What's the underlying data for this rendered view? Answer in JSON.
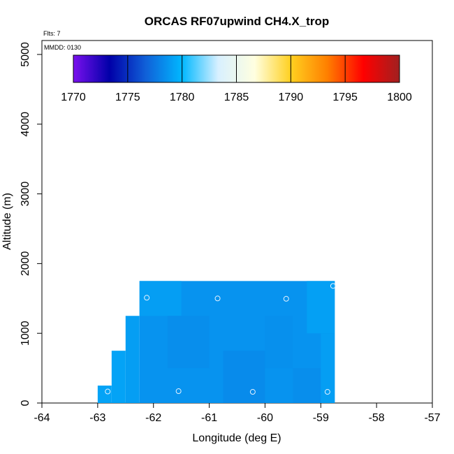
{
  "chart_data": {
    "type": "heatmap",
    "title": "ORCAS RF07upwind CH4.X_trop",
    "xlabel": "Longitude (deg E)",
    "ylabel": "Altitude (m)",
    "xlim": [
      -64,
      -57
    ],
    "ylim": [
      0,
      5200
    ],
    "x_ticks": [
      -64,
      -63,
      -62,
      -61,
      -60,
      -59,
      -58,
      -57
    ],
    "y_ticks": [
      0,
      1000,
      2000,
      3000,
      4000,
      5000
    ],
    "annotations": {
      "flights": "Flts: 7",
      "date": "MMDD: 0130"
    },
    "colorbar": {
      "min": 1770,
      "max": 1800,
      "ticks": [
        1770,
        1775,
        1780,
        1785,
        1790,
        1795,
        1800
      ],
      "colors": [
        "#7a10ee",
        "#0000a8",
        "#1060d8",
        "#00b8ff",
        "#d8f0ff",
        "#ffffe0",
        "#ffd020",
        "#ff8000",
        "#ff0000",
        "#a02020"
      ]
    },
    "cells": [
      {
        "x0": -63.0,
        "x1": -62.75,
        "y0": 0,
        "y1": 250,
        "value": 1779.2
      },
      {
        "x0": -62.75,
        "x1": -62.5,
        "y0": 0,
        "y1": 750,
        "value": 1779.2
      },
      {
        "x0": -62.5,
        "x1": -62.25,
        "y0": 0,
        "y1": 1250,
        "value": 1779.0
      },
      {
        "x0": -62.25,
        "x1": -58.75,
        "y0": 0,
        "y1": 1750,
        "value": 1778.6
      },
      {
        "x0": -62.25,
        "x1": -61.5,
        "y0": 1250,
        "y1": 1750,
        "value": 1779.0
      },
      {
        "x0": -61.75,
        "x1": -61.0,
        "y0": 500,
        "y1": 1250,
        "value": 1778.4
      },
      {
        "x0": -60.75,
        "x1": -60.0,
        "y0": 0,
        "y1": 750,
        "value": 1778.3
      },
      {
        "x0": -60.0,
        "x1": -59.5,
        "y0": 500,
        "y1": 1250,
        "value": 1778.5
      },
      {
        "x0": -59.5,
        "x1": -59.0,
        "y0": 0,
        "y1": 500,
        "value": 1778.4
      },
      {
        "x0": -59.25,
        "x1": -58.75,
        "y0": 1000,
        "y1": 1750,
        "value": 1779.1
      },
      {
        "x0": -59.0,
        "x1": -58.75,
        "y0": 0,
        "y1": 1000,
        "value": 1779.0
      }
    ],
    "points": [
      {
        "x": -62.82,
        "y": 165
      },
      {
        "x": -61.55,
        "y": 170
      },
      {
        "x": -60.22,
        "y": 160
      },
      {
        "x": -58.88,
        "y": 160
      },
      {
        "x": -62.12,
        "y": 1510
      },
      {
        "x": -60.85,
        "y": 1500
      },
      {
        "x": -59.62,
        "y": 1495
      },
      {
        "x": -58.78,
        "y": 1680
      }
    ]
  }
}
